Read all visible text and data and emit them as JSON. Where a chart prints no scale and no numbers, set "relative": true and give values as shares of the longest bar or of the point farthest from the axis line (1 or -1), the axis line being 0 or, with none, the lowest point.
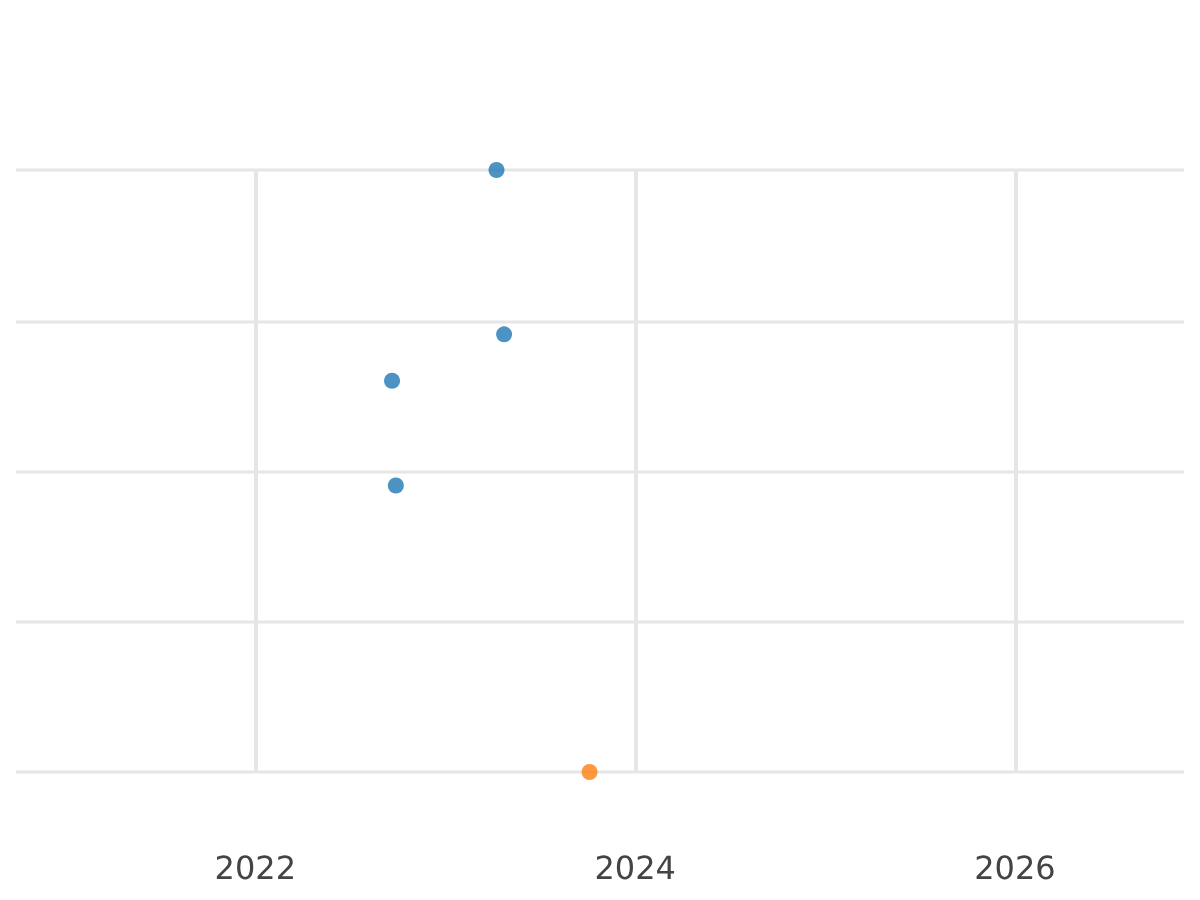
{
  "chart_data": {
    "type": "scatter",
    "relative": true,
    "xlim": [
      2020.74,
      2026.89
    ],
    "xticks": [
      2022,
      2024,
      2026
    ],
    "grid": true,
    "marker": "circle",
    "series": [
      {
        "color": "#1f77b4",
        "x": [
          2022.72,
          2022.74,
          2023.27,
          2023.31
        ],
        "values": [
          0.65,
          0.476,
          1,
          0.727
        ]
      },
      {
        "color": "#ff7f0e",
        "x": [
          2023.76
        ],
        "values": [
          0
        ]
      }
    ]
  }
}
